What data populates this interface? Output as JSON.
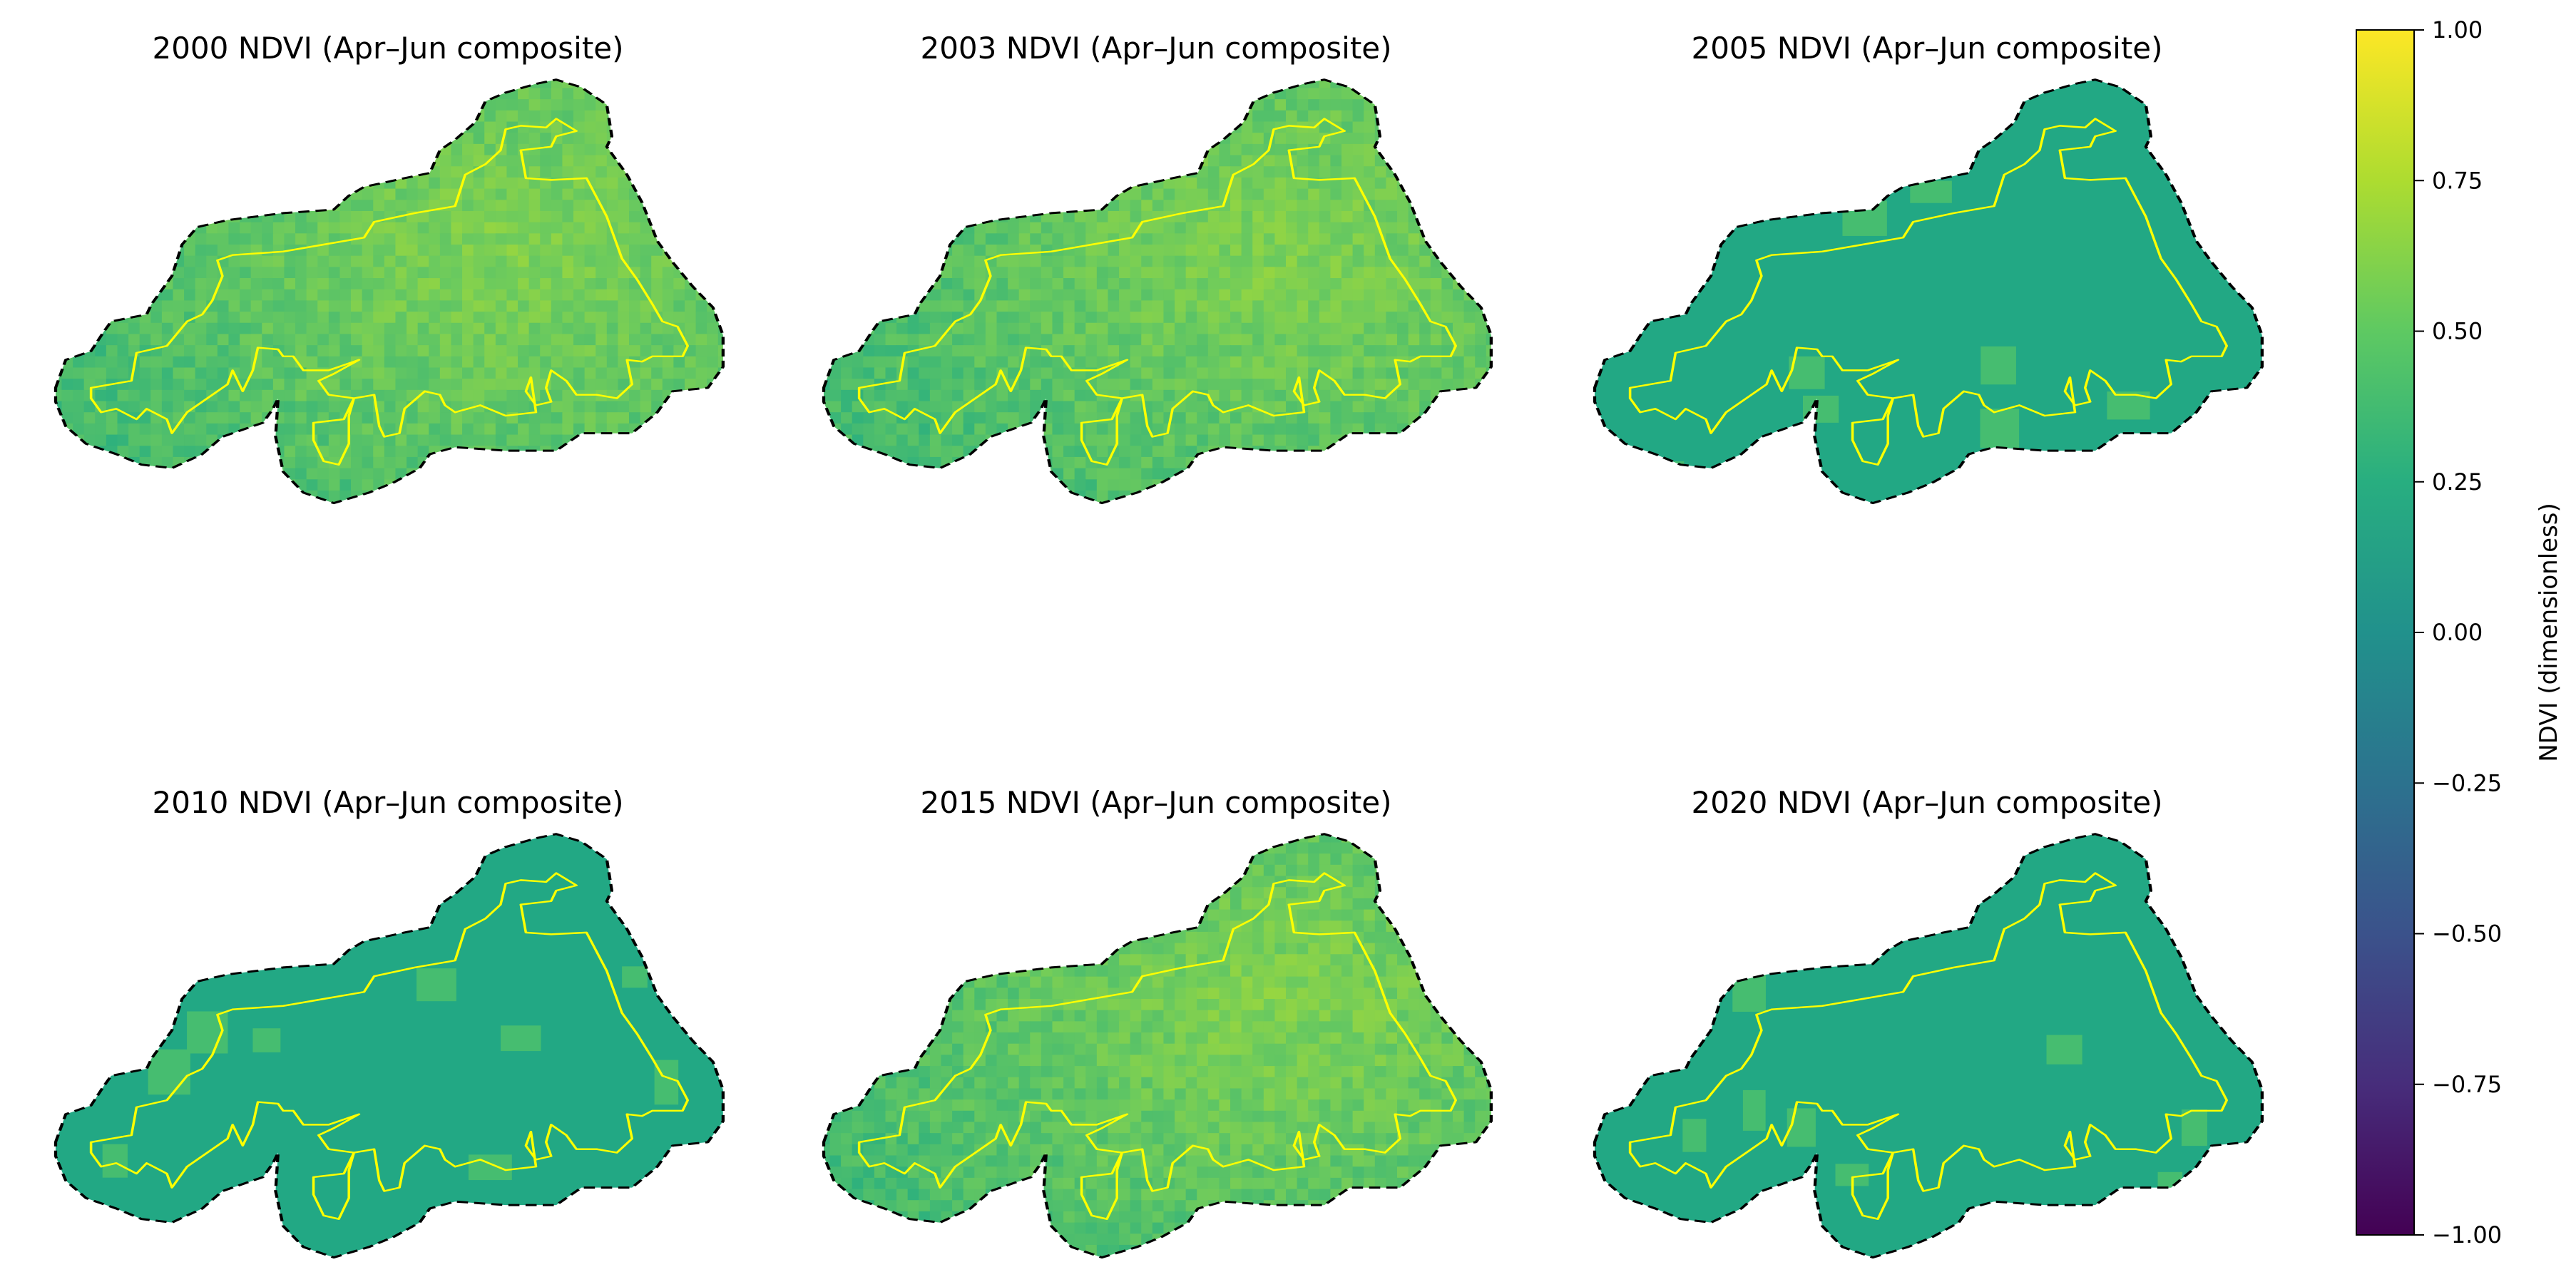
{
  "chart_data": {
    "type": "heatmap",
    "layout": "2 rows x 3 columns of map panels with shared colorbar on the right",
    "panels": [
      {
        "title": "2000 NDVI (Apr–Jun composite)",
        "year": 2000,
        "texture": "varied",
        "typical_ndvi": 0.55,
        "fill_color": "#6ecb5c"
      },
      {
        "title": "2003 NDVI (Apr–Jun composite)",
        "year": 2003,
        "texture": "varied",
        "typical_ndvi": 0.55,
        "fill_color": "#6ecb5c"
      },
      {
        "title": "2005 NDVI (Apr–Jun composite)",
        "year": 2005,
        "texture": "flat",
        "typical_ndvi": 0.2,
        "fill_color": "#22a884"
      },
      {
        "title": "2010 NDVI (Apr–Jun composite)",
        "year": 2010,
        "texture": "flat",
        "typical_ndvi": 0.2,
        "fill_color": "#22a884"
      },
      {
        "title": "2015 NDVI (Apr–Jun composite)",
        "year": 2015,
        "texture": "varied",
        "typical_ndvi": 0.55,
        "fill_color": "#6ecb5c"
      },
      {
        "title": "2020 NDVI (Apr–Jun composite)",
        "year": 2020,
        "texture": "flat",
        "typical_ndvi": 0.2,
        "fill_color": "#22a884"
      }
    ],
    "boundary_outline_color": "#ffff00",
    "buffer_outline_style": "black dashed",
    "colorbar": {
      "label": "NDVI (dimensionless)",
      "colormap": "viridis",
      "vmin": -1.0,
      "vmax": 1.0,
      "ticks": [
        "1.00",
        "0.75",
        "0.50",
        "0.25",
        "0.00",
        "−0.25",
        "−0.50",
        "−0.75",
        "−1.00"
      ],
      "tick_values": [
        1.0,
        0.75,
        0.5,
        0.25,
        0.0,
        -0.25,
        -0.5,
        -0.75,
        -1.0
      ]
    },
    "axes": "off"
  }
}
